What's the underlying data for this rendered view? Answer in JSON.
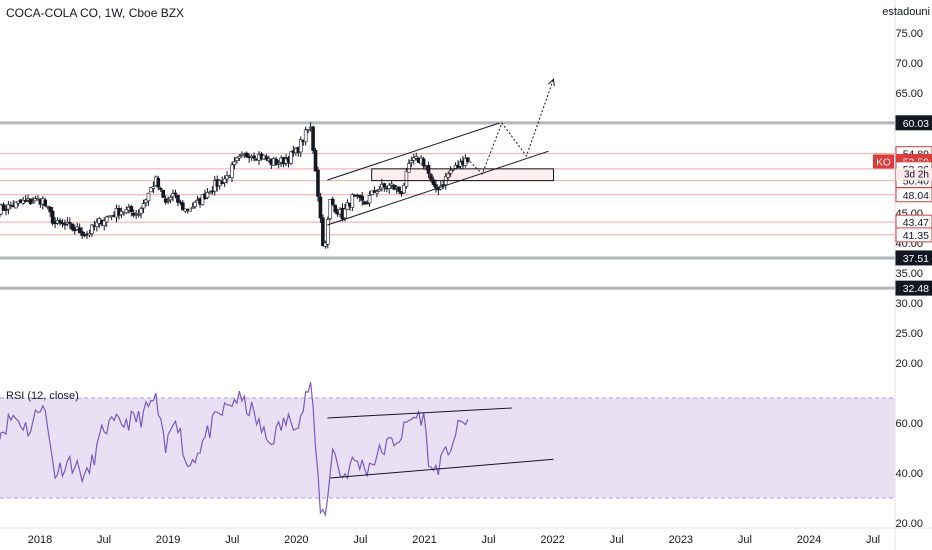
{
  "header": {
    "title": "COCA-COLA CO, 1W, Cboe BZX",
    "corner_text": "estadouni"
  },
  "rsi_header": {
    "title": "RSI (12, close)"
  },
  "price_badge": {
    "symbol": "KO",
    "price": "53.59",
    "countdown": "3d 2h"
  },
  "colors": {
    "up": "#26a69a",
    "down": "#f23645",
    "rsi_line": "#7e57c2",
    "rsi_band": "#e1d5f0",
    "level_line": "#b2b5be",
    "red_line": "#f0a8a8",
    "badge_dark": "#131722",
    "badge_red": "#e03a3a"
  },
  "chart_data": [
    {
      "type": "line",
      "subtype": "candlestick",
      "title": "COCA-COLA CO, 1W, Cboe BZX",
      "x_ticks": [
        "2018",
        "Jul",
        "2019",
        "Jul",
        "2020",
        "Jul",
        "2021",
        "Jul",
        "2022",
        "Jul",
        "2023",
        "Jul",
        "2024",
        "Jul"
      ],
      "y_ticks": [
        75.0,
        70.0,
        65.0,
        60.0,
        55.0,
        50.0,
        45.0,
        40.0,
        35.0,
        30.0,
        25.0,
        20.0
      ],
      "ylim": [
        17.5,
        77.5
      ],
      "price_labels": [
        {
          "value": 60.03,
          "text": "60.03",
          "style": "dark"
        },
        {
          "value": 54.89,
          "text": "54.89",
          "style": "red"
        },
        {
          "value": 53.59,
          "text": "53.59",
          "style": "current"
        },
        {
          "value": 52.36,
          "text": "52.36",
          "style": "red"
        },
        {
          "value": 50.4,
          "text": "50.40",
          "style": "red"
        },
        {
          "value": 48.04,
          "text": "48.04",
          "style": "red"
        },
        {
          "value": 43.47,
          "text": "43.47",
          "style": "red"
        },
        {
          "value": 41.35,
          "text": "41.35",
          "style": "red"
        },
        {
          "value": 37.51,
          "text": "37.51",
          "style": "dark"
        },
        {
          "value": 32.48,
          "text": "32.48",
          "style": "dark"
        }
      ],
      "series": [
        {
          "name": "KO",
          "dates": [
            "2017-09-05",
            "2021-05-10"
          ],
          "anchors": [
            [
              "2017-09-04",
              45.5
            ],
            [
              "2017-11-13",
              46.8
            ],
            [
              "2018-01-08",
              47.2
            ],
            [
              "2018-02-12",
              43.2
            ],
            [
              "2018-03-19",
              42.8
            ],
            [
              "2018-05-14",
              41.5
            ],
            [
              "2018-06-25",
              43.8
            ],
            [
              "2018-08-20",
              45.5
            ],
            [
              "2018-10-08",
              45.0
            ],
            [
              "2018-11-26",
              50.5
            ],
            [
              "2018-12-24",
              46.5
            ],
            [
              "2019-01-14",
              48.0
            ],
            [
              "2019-02-18",
              45.5
            ],
            [
              "2019-03-25",
              46.5
            ],
            [
              "2019-04-29",
              49.0
            ],
            [
              "2019-06-17",
              51.0
            ],
            [
              "2019-07-15",
              53.5
            ],
            [
              "2019-08-19",
              55.0
            ],
            [
              "2019-09-23",
              54.5
            ],
            [
              "2019-10-21",
              53.5
            ],
            [
              "2019-11-18",
              53.5
            ],
            [
              "2019-12-30",
              55.0
            ],
            [
              "2020-02-10",
              59.5
            ],
            [
              "2020-02-24",
              53.0
            ],
            [
              "2020-03-16",
              40.5
            ],
            [
              "2020-03-23",
              39.0
            ],
            [
              "2020-04-06",
              47.0
            ],
            [
              "2020-05-11",
              44.5
            ],
            [
              "2020-06-08",
              47.5
            ],
            [
              "2020-07-13",
              46.5
            ],
            [
              "2020-08-17",
              49.0
            ],
            [
              "2020-09-28",
              49.5
            ],
            [
              "2020-10-26",
              48.5
            ],
            [
              "2020-11-23",
              53.5
            ],
            [
              "2020-12-21",
              54.0
            ],
            [
              "2021-01-04",
              53.0
            ],
            [
              "2021-01-25",
              49.0
            ],
            [
              "2021-02-15",
              49.5
            ],
            [
              "2021-03-15",
              52.0
            ],
            [
              "2021-04-12",
              53.0
            ],
            [
              "2021-04-26",
              54.5
            ],
            [
              "2021-05-10",
              53.59
            ]
          ]
        }
      ],
      "zone": {
        "x0": "2020-08-03",
        "x1": "2022-01-03",
        "y0": 52.36,
        "y1": 50.4
      },
      "channel": {
        "upper": [
          [
            "2020-03-30",
            50.5
          ],
          [
            "2021-08-02",
            60.0
          ]
        ],
        "lower": [
          [
            "2020-03-30",
            43.0
          ],
          [
            "2021-12-20",
            55.3
          ]
        ]
      },
      "projection": [
        [
          "2021-05-10",
          53.59
        ],
        [
          "2021-06-14",
          51.5
        ],
        [
          "2021-08-09",
          60.0
        ],
        [
          "2021-10-18",
          54.5
        ],
        [
          "2022-01-03",
          67.3
        ]
      ]
    },
    {
      "type": "line",
      "title": "RSI (12, close)",
      "y_ticks": [
        60.0,
        40.0,
        20.0
      ],
      "ylim": [
        18,
        78
      ],
      "band": [
        30,
        70
      ],
      "series": [
        {
          "name": "RSI (12, close)",
          "anchors": [
            [
              "2017-09-04",
              55
            ],
            [
              "2017-10-16",
              63
            ],
            [
              "2017-12-04",
              57
            ],
            [
              "2018-01-08",
              70
            ],
            [
              "2018-02-12",
              40
            ],
            [
              "2018-03-26",
              45
            ],
            [
              "2018-05-14",
              38
            ],
            [
              "2018-07-02",
              58
            ],
            [
              "2018-08-20",
              60
            ],
            [
              "2018-10-15",
              62
            ],
            [
              "2018-11-26",
              70
            ],
            [
              "2018-12-24",
              48
            ],
            [
              "2019-01-21",
              65
            ],
            [
              "2019-02-25",
              42
            ],
            [
              "2019-04-08",
              52
            ],
            [
              "2019-05-20",
              62
            ],
            [
              "2019-07-15",
              70
            ],
            [
              "2019-08-26",
              65
            ],
            [
              "2019-10-14",
              52
            ],
            [
              "2019-11-25",
              60
            ],
            [
              "2020-01-13",
              62
            ],
            [
              "2020-02-10",
              77
            ],
            [
              "2020-03-09",
              27
            ],
            [
              "2020-03-23",
              22
            ],
            [
              "2020-04-13",
              50
            ],
            [
              "2020-05-11",
              38
            ],
            [
              "2020-06-15",
              45
            ],
            [
              "2020-07-20",
              42
            ],
            [
              "2020-09-07",
              50
            ],
            [
              "2020-10-26",
              55
            ],
            [
              "2020-11-23",
              62
            ],
            [
              "2020-12-28",
              63
            ],
            [
              "2021-01-18",
              40
            ],
            [
              "2021-02-22",
              45
            ],
            [
              "2021-03-29",
              55
            ],
            [
              "2021-04-26",
              62
            ],
            [
              "2021-05-10",
              60
            ]
          ]
        }
      ],
      "channel": {
        "upper": [
          [
            "2020-03-30",
            62.0
          ],
          [
            "2021-09-06",
            66.0
          ]
        ],
        "lower": [
          [
            "2020-04-06",
            38.0
          ],
          [
            "2022-01-03",
            45.5
          ]
        ]
      }
    }
  ]
}
